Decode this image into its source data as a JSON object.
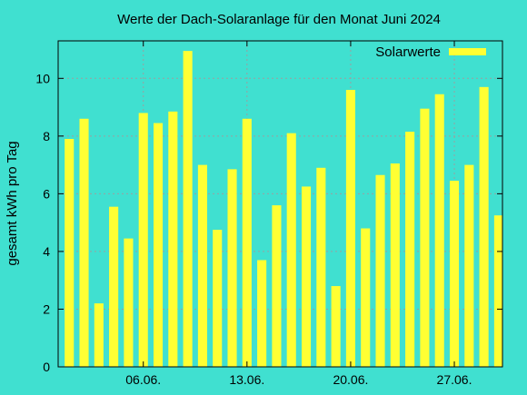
{
  "chart_data": {
    "type": "bar",
    "title": "Werte der Dach-Solaranlage für den Monat Juni 2024",
    "ylabel": "gesamt kWh pro Tag",
    "xlabel": "",
    "x": [
      1,
      2,
      3,
      4,
      5,
      6,
      7,
      8,
      9,
      10,
      11,
      12,
      13,
      14,
      15,
      16,
      17,
      18,
      19,
      20,
      21,
      22,
      23,
      24,
      25,
      26,
      27,
      28,
      29,
      30
    ],
    "xlim": [
      0.25,
      30.25
    ],
    "ylim": [
      0,
      11.3
    ],
    "yticks": [
      0,
      2,
      4,
      6,
      8,
      10
    ],
    "yticklabels": [
      "0",
      "2",
      "4",
      "6",
      "8",
      "10"
    ],
    "xticks": [
      6,
      13,
      20,
      27
    ],
    "xticklabels": [
      "06.06.",
      "13.06.",
      "20.06.",
      "27.06."
    ],
    "grid": true,
    "legend_position": "top-right",
    "series": [
      {
        "name": "Solarwerte",
        "color": "#ffff33",
        "values": [
          7.9,
          8.6,
          2.2,
          5.55,
          4.45,
          8.8,
          8.45,
          8.85,
          10.95,
          7.0,
          4.75,
          6.85,
          8.6,
          3.7,
          5.6,
          8.1,
          6.25,
          6.9,
          2.8,
          9.6,
          4.8,
          6.65,
          7.05,
          8.15,
          8.95,
          9.45,
          6.45,
          7.0,
          9.7,
          5.25
        ]
      }
    ]
  }
}
